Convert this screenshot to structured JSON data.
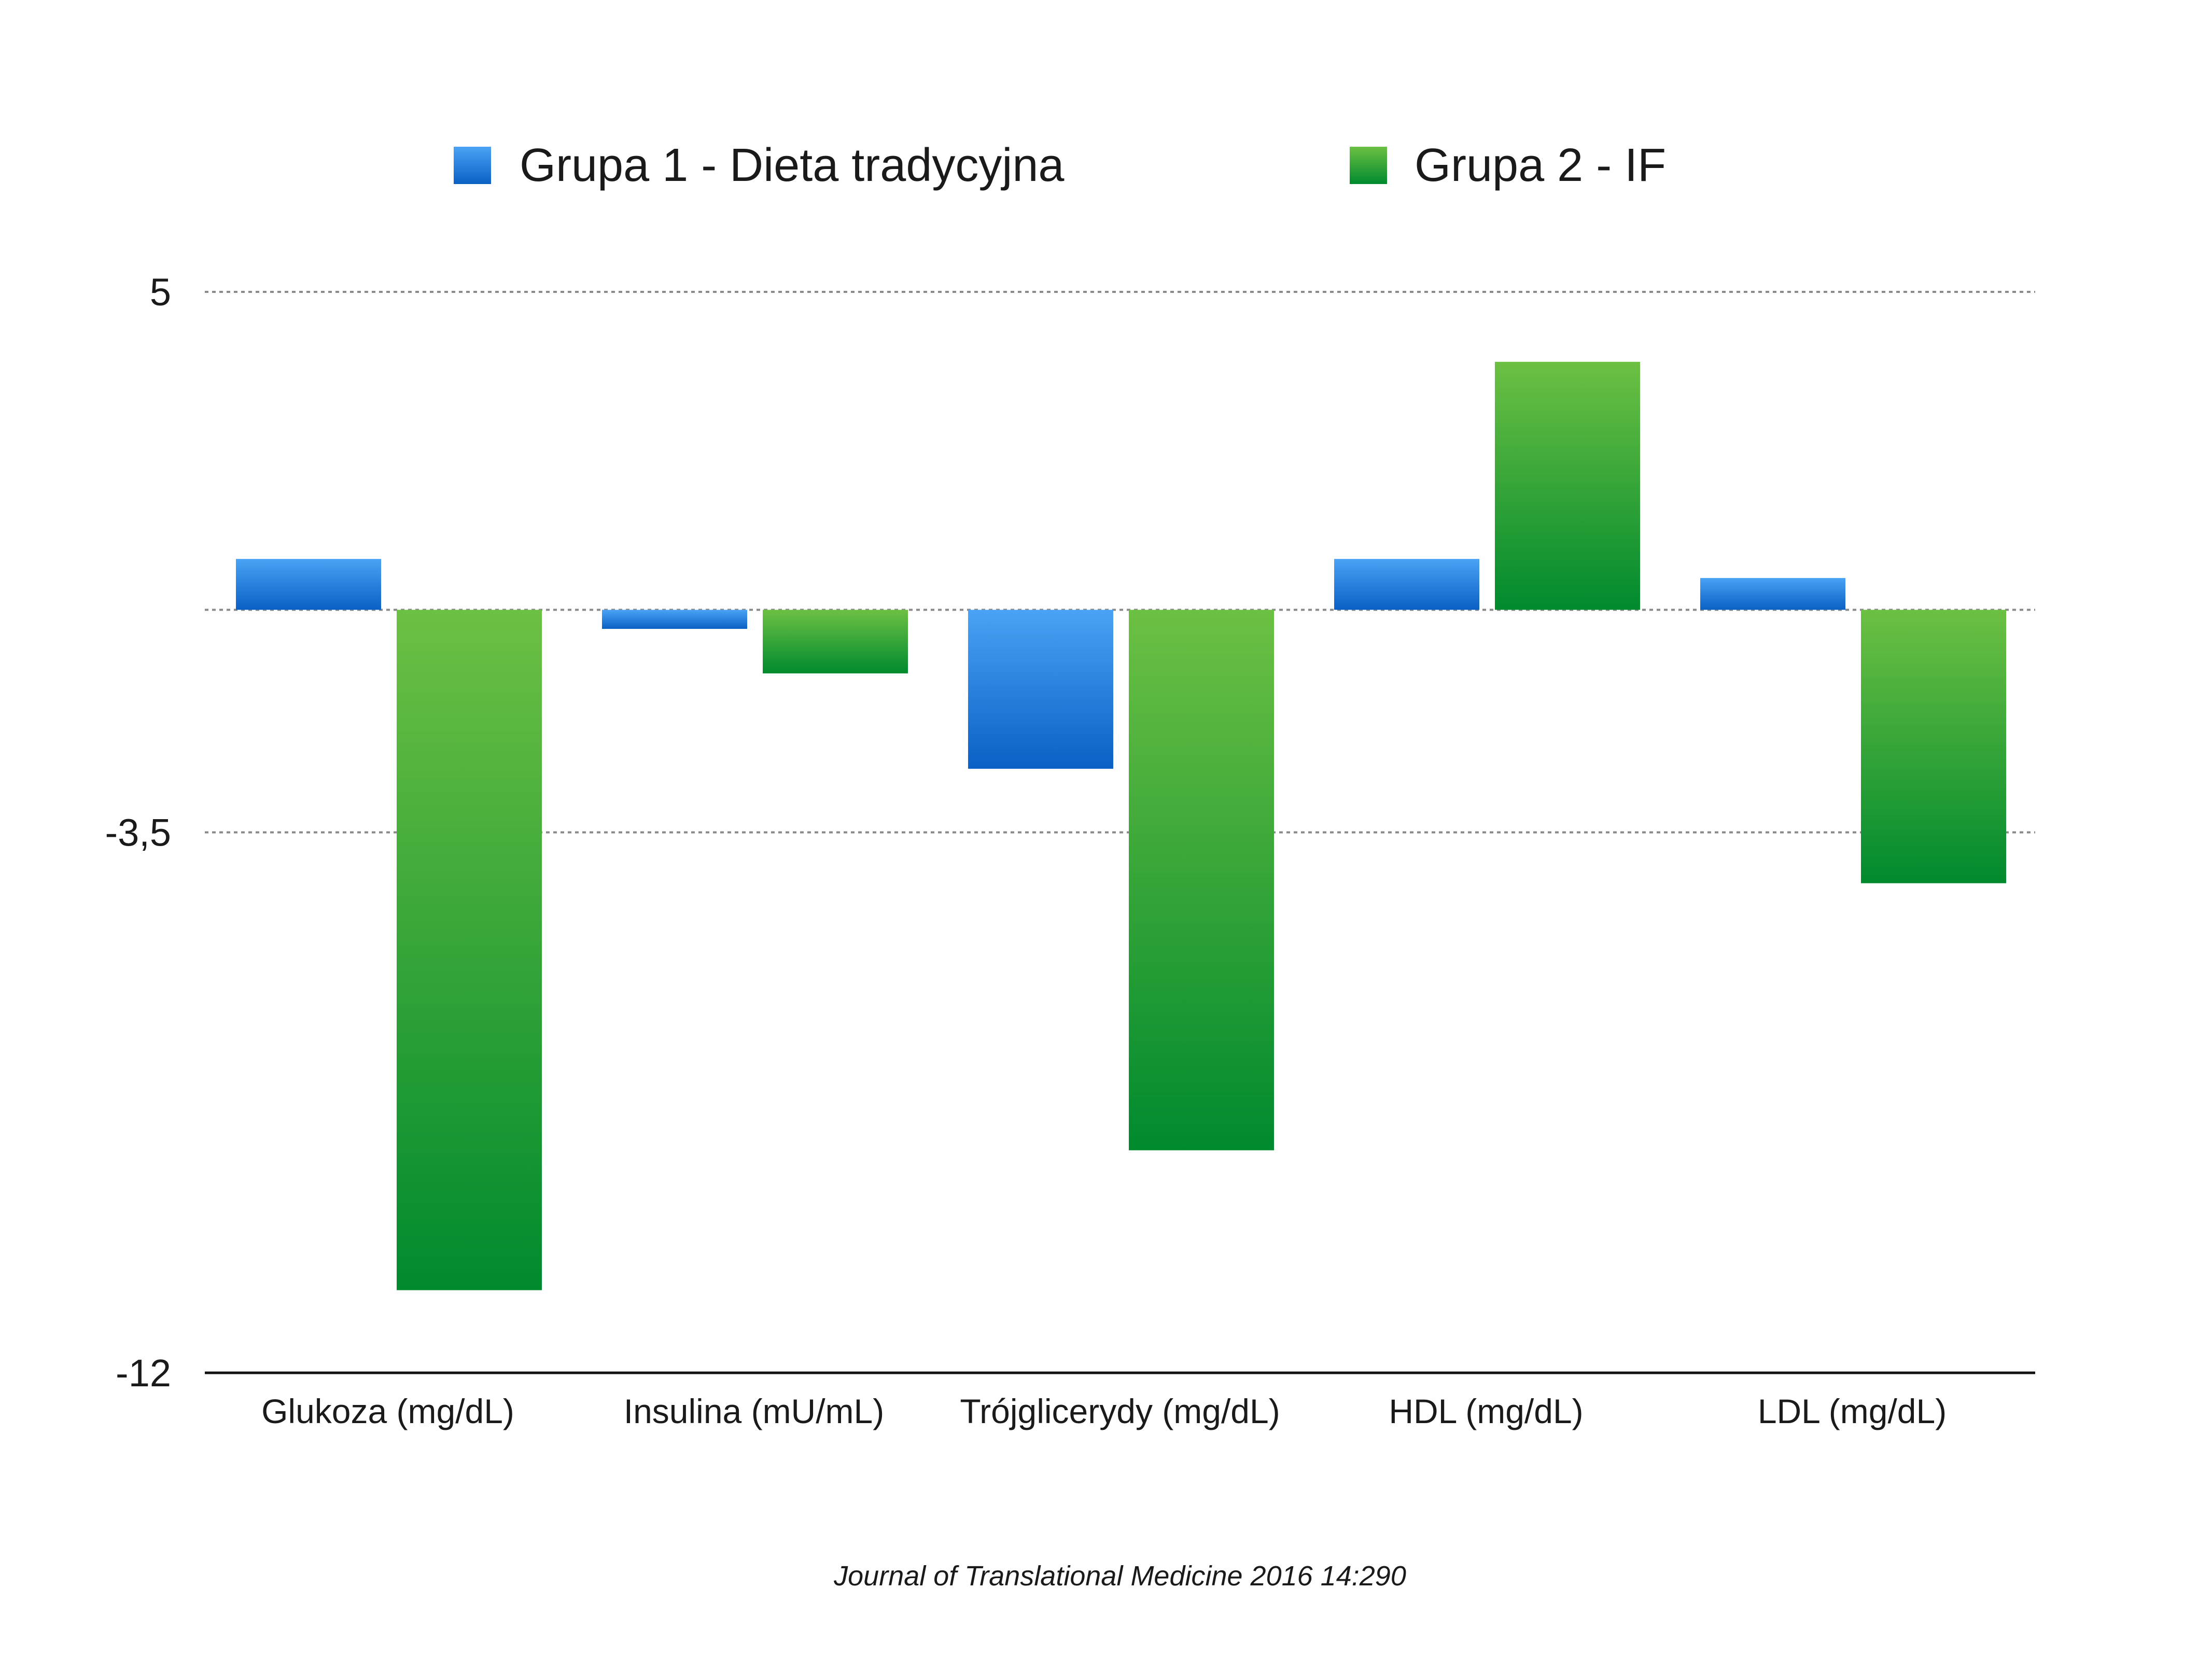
{
  "chart_data": {
    "type": "bar",
    "categories": [
      "Glukoza (mg/dL)",
      "Insulina (mU/mL)",
      "Trójglicerydy (mg/dL)",
      "HDL (mg/dL)",
      "LDL (mg/dL)"
    ],
    "series": [
      {
        "name": "Grupa 1 - Dieta tradycyjna",
        "values": [
          0.8,
          -0.3,
          -2.5,
          0.8,
          0.5
        ],
        "color_top": "#4aa3f5",
        "color_bottom": "#0b60c4"
      },
      {
        "name": "Grupa 2 - IF",
        "values": [
          -10.7,
          -1.0,
          -8.5,
          3.9,
          -4.3
        ],
        "color_top": "#6cc043",
        "color_bottom": "#008a2e"
      }
    ],
    "ylim": [
      -12,
      5
    ],
    "yticks": [
      5,
      -3.5,
      -12
    ],
    "ytick_labels": [
      "5",
      "-3,5",
      "-12"
    ],
    "gridlines": "dotted",
    "legend_position": "top",
    "title": "",
    "xlabel": "",
    "ylabel": ""
  },
  "source_note": "Journal of Translational Medicine 2016 14:290"
}
